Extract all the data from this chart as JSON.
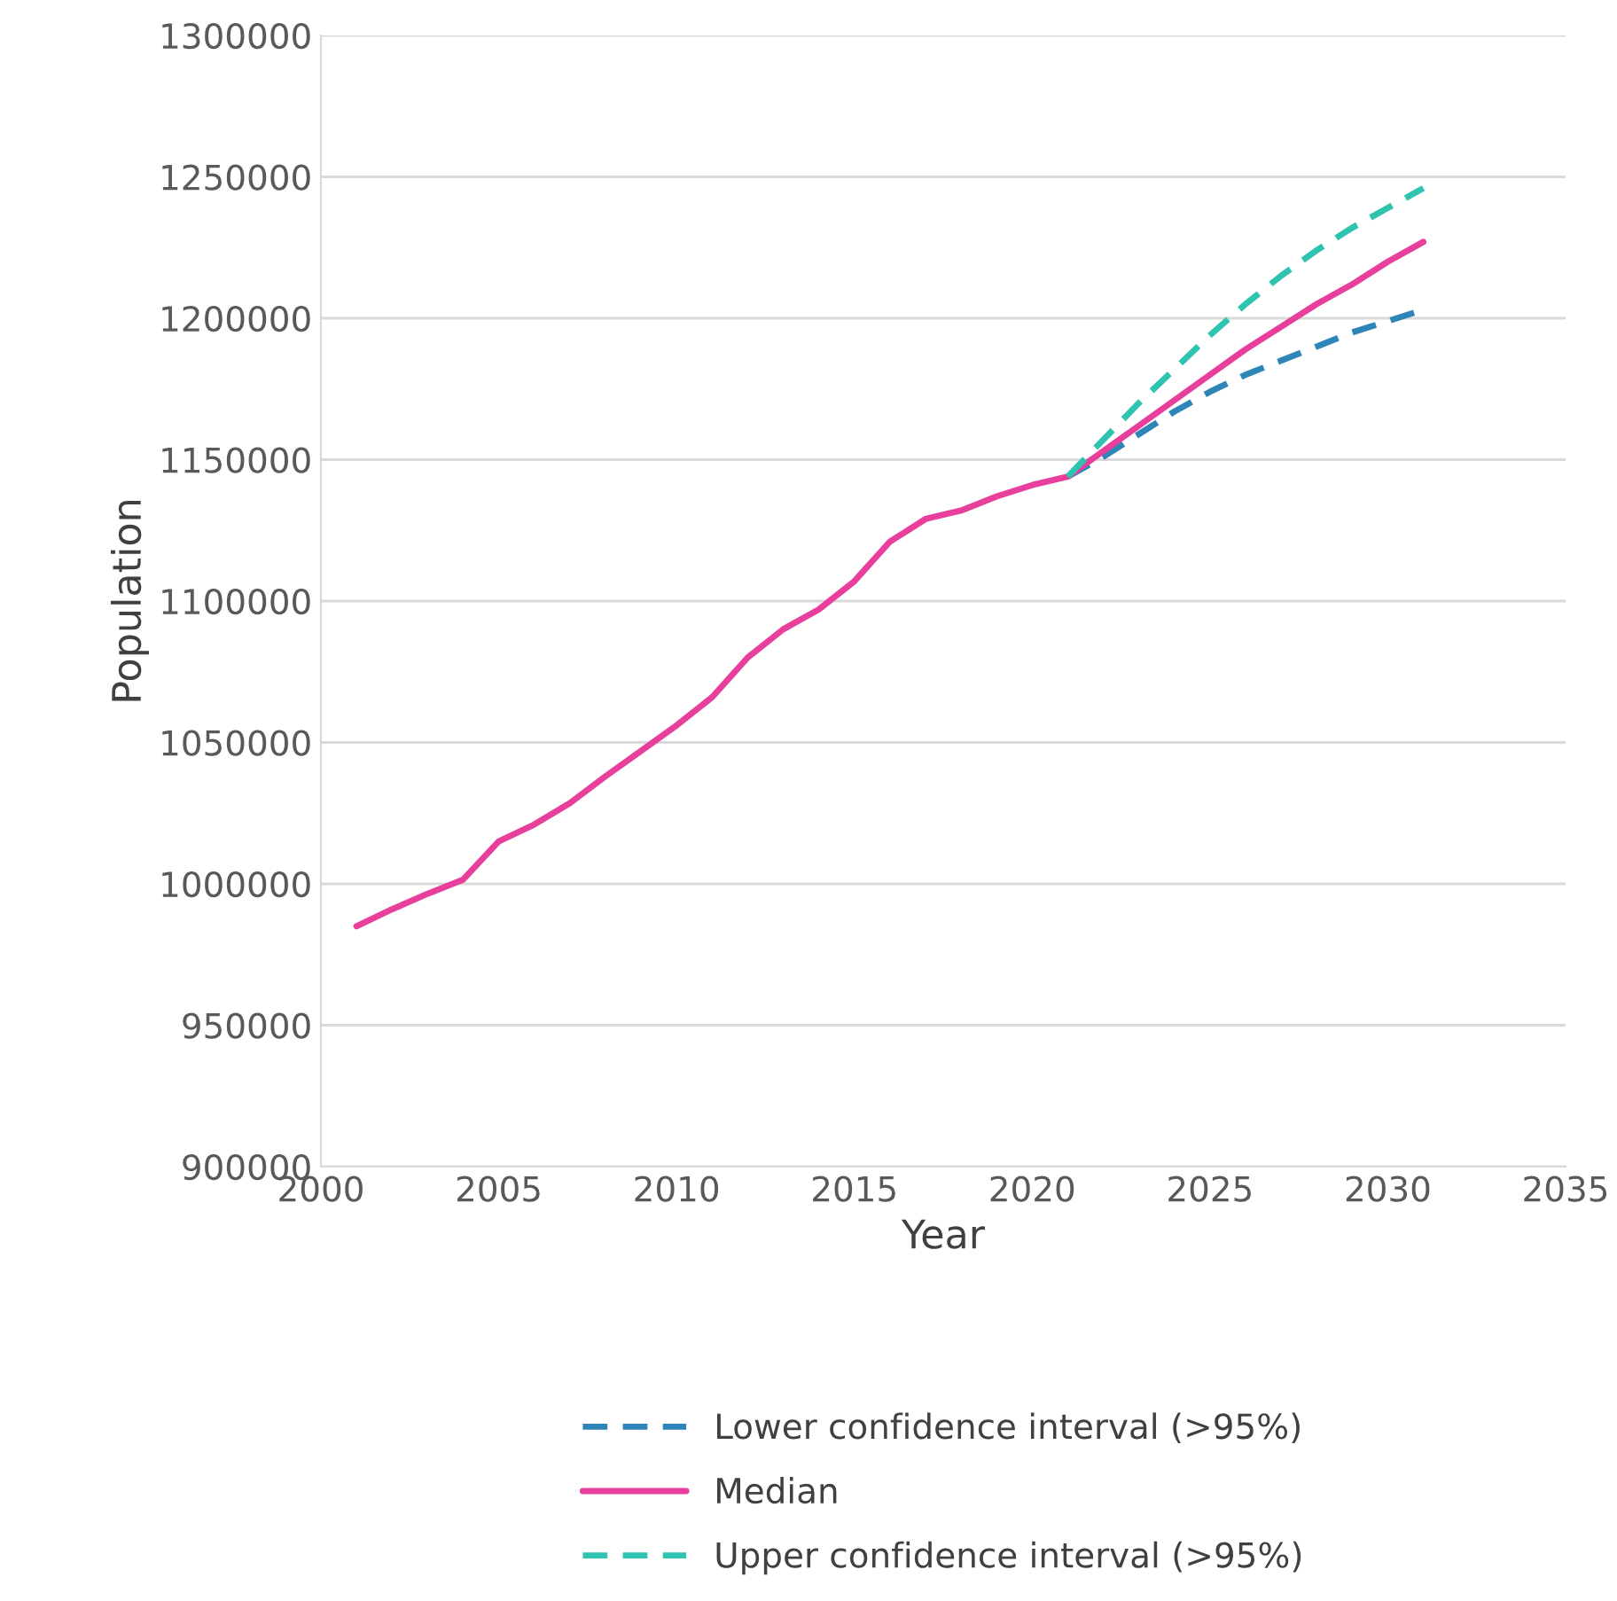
{
  "chart_data": {
    "type": "line",
    "xlabel": "Year",
    "ylabel": "Population",
    "xlim": [
      2000,
      2035
    ],
    "xticks": [
      2000,
      2005,
      2010,
      2015,
      2020,
      2025,
      2030,
      2035
    ],
    "ylim": [
      900000,
      1300000
    ],
    "yticks": [
      900000,
      950000,
      1000000,
      1050000,
      1100000,
      1150000,
      1200000,
      1250000,
      1300000
    ],
    "grid": "y",
    "legend": "bottom",
    "series": [
      {
        "name": "Lower confidence interval (>95%)",
        "color": "#2e86b8",
        "line_style": "dashed",
        "x": [
          2021,
          2022,
          2023,
          2024,
          2025,
          2026,
          2027,
          2028,
          2029,
          2030,
          2031
        ],
        "values": [
          1144000,
          1151000,
          1159000,
          1167000,
          1174000,
          1180000,
          1185000,
          1190000,
          1195000,
          1199000,
          1203000
        ]
      },
      {
        "name": "Median",
        "color": "#e83e9c",
        "line_style": "solid",
        "x": [
          2001,
          2002,
          2003,
          2004,
          2005,
          2006,
          2007,
          2008,
          2009,
          2010,
          2011,
          2012,
          2013,
          2014,
          2015,
          2016,
          2017,
          2018,
          2019,
          2020,
          2021,
          2022,
          2023,
          2024,
          2025,
          2026,
          2027,
          2028,
          2029,
          2030,
          2031
        ],
        "values": [
          985000,
          991000,
          996500,
          1001500,
          1015000,
          1021000,
          1028500,
          1038000,
          1047000,
          1056000,
          1066000,
          1080000,
          1090000,
          1097000,
          1107000,
          1121000,
          1129000,
          1132000,
          1137000,
          1141000,
          1144000,
          1153000,
          1162000,
          1171000,
          1180000,
          1189000,
          1197000,
          1205000,
          1212000,
          1220000,
          1227000
        ]
      },
      {
        "name": "Upper confidence interval (>95%)",
        "color": "#2ec4b0",
        "line_style": "dashed",
        "x": [
          2021,
          2022,
          2023,
          2024,
          2025,
          2026,
          2027,
          2028,
          2029,
          2030,
          2031
        ],
        "values": [
          1144000,
          1157000,
          1170000,
          1182000,
          1194000,
          1205000,
          1215000,
          1224000,
          1232000,
          1239000,
          1246000
        ]
      }
    ]
  }
}
